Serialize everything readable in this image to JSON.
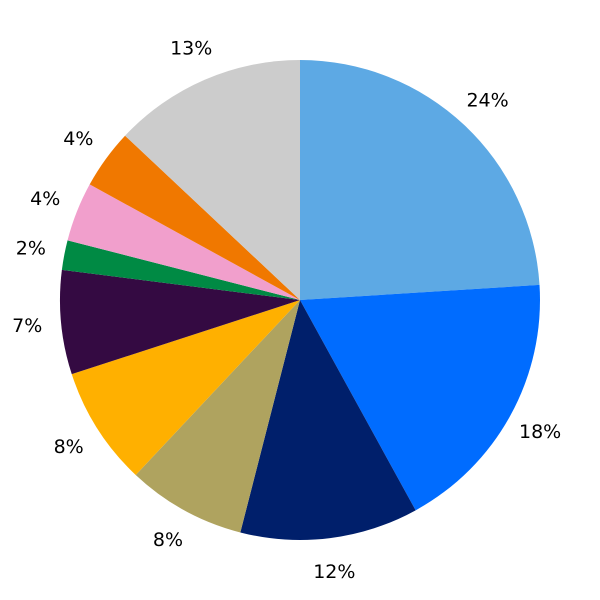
{
  "chart_data": {
    "type": "pie",
    "start_angle": "top",
    "direction": "clockwise",
    "values": [
      24,
      18,
      12,
      8,
      8,
      7,
      2,
      4,
      4,
      13
    ],
    "labels": [
      "24%",
      "18%",
      "12%",
      "8%",
      "8%",
      "7%",
      "2%",
      "4%",
      "4%",
      "13%"
    ],
    "colors": [
      "#5DA9E4",
      "#006CFF",
      "#001F6B",
      "#AFA35F",
      "#FFB000",
      "#340A42",
      "#008A44",
      "#F19FCC",
      "#F07800",
      "#CCCCCC"
    ]
  }
}
